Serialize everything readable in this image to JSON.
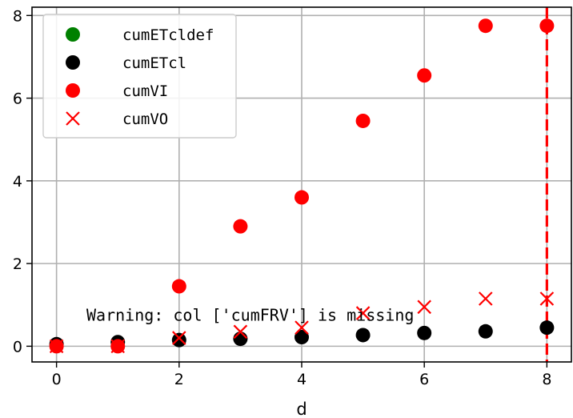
{
  "chart_data": {
    "type": "scatter",
    "xlabel": "d",
    "ylabel": "",
    "xlim": [
      -0.4,
      8.4
    ],
    "ylim": [
      -0.38,
      8.2
    ],
    "xticks": [
      0,
      2,
      4,
      6,
      8
    ],
    "yticks": [
      0,
      2,
      4,
      6,
      8
    ],
    "grid": true,
    "legend_position": "top-left",
    "series": [
      {
        "name": "cumETcldef",
        "marker": "circle",
        "color": "#008000",
        "x": [],
        "y": []
      },
      {
        "name": "cumETcl",
        "marker": "circle",
        "color": "#000000",
        "x": [
          0,
          1,
          2,
          3,
          4,
          5,
          6,
          7,
          8
        ],
        "y": [
          0.05,
          0.1,
          0.15,
          0.18,
          0.22,
          0.27,
          0.32,
          0.36,
          0.45
        ]
      },
      {
        "name": "cumVI",
        "marker": "circle",
        "color": "#ff0000",
        "x": [
          0,
          1,
          2,
          3,
          4,
          5,
          6,
          7,
          8
        ],
        "y": [
          0.0,
          0.0,
          1.45,
          2.9,
          3.6,
          5.45,
          6.55,
          7.75,
          7.75
        ]
      },
      {
        "name": "cumVO",
        "marker": "x",
        "color": "#ff0000",
        "x": [
          0,
          1,
          2,
          3,
          4,
          5,
          6,
          7,
          8
        ],
        "y": [
          0.0,
          0.0,
          0.2,
          0.35,
          0.45,
          0.8,
          0.95,
          1.15,
          1.15
        ]
      }
    ],
    "vline": {
      "x": 8,
      "color": "#ff0000",
      "style": "dashed"
    },
    "annotation": {
      "text": "Warning: col ['cumFRV'] is missing",
      "x": 0.5,
      "y": 0.62
    }
  }
}
